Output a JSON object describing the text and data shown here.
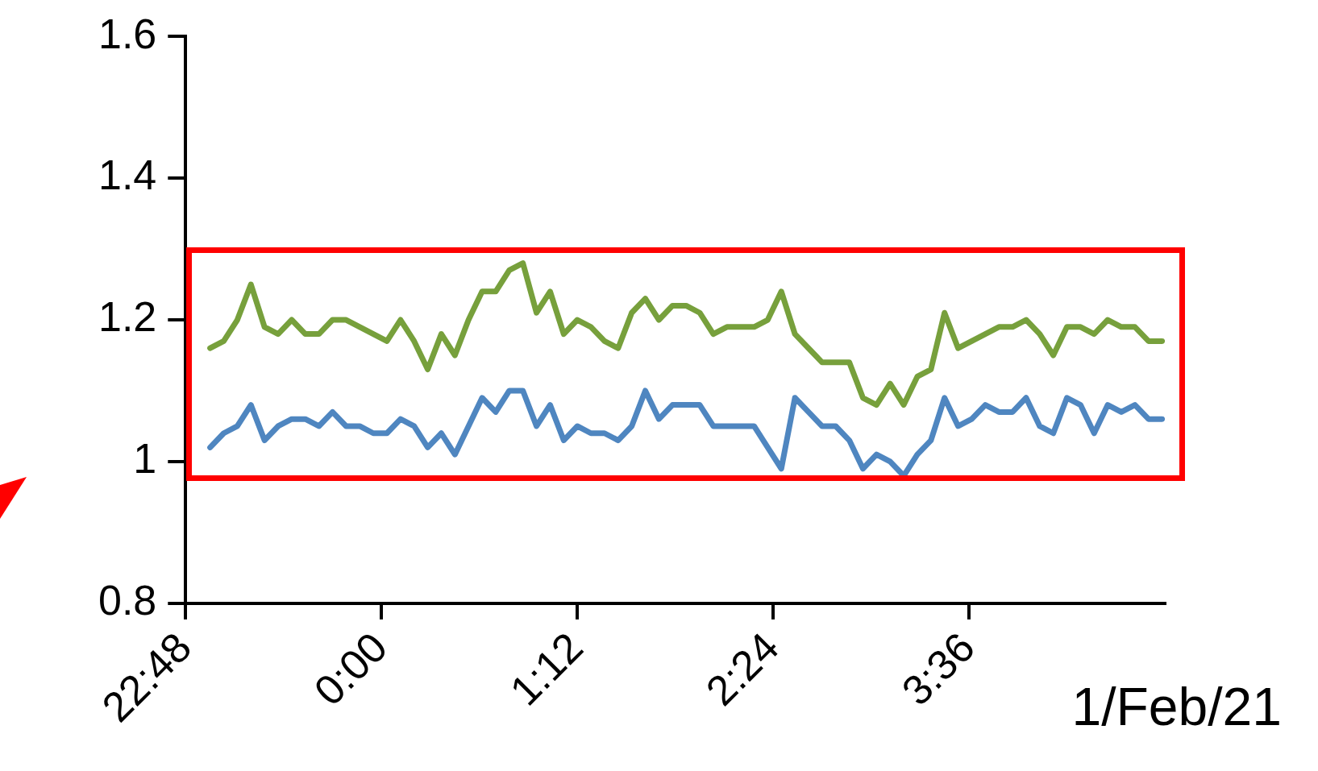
{
  "chart_data": {
    "type": "line",
    "xlabel": "1/Feb/21",
    "x": [
      "--01-31T22:57",
      "--01-31T23:02",
      "--01-31T23:07",
      "--01-31T23:12",
      "--01-31T23:17",
      "--01-31T23:22",
      "--01-31T23:27",
      "--01-31T23:32",
      "--01-31T23:37",
      "--01-31T23:42",
      "--01-31T23:47",
      "--01-31T23:52",
      "--01-31T23:57",
      "--02-01T00:02",
      "--02-01T00:07",
      "--02-01T00:12",
      "--02-01T00:17",
      "--02-01T00:22",
      "--02-01T00:27",
      "--02-01T00:32",
      "--02-01T00:37",
      "--02-01T00:42",
      "--02-01T00:47",
      "--02-01T00:52",
      "--02-01T00:57",
      "--02-01T01:02",
      "--02-01T01:07",
      "--02-01T01:12",
      "--02-01T01:17",
      "--02-01T01:22",
      "--02-01T01:27",
      "--02-01T01:32",
      "--02-01T01:37",
      "--02-01T01:42",
      "--02-01T01:47",
      "--02-01T01:52",
      "--02-01T01:57",
      "--02-01T02:02",
      "--02-01T02:07",
      "--02-01T02:12",
      "--02-01T02:17",
      "--02-01T02:22",
      "--02-01T02:27",
      "--02-01T02:32",
      "--02-01T02:37",
      "--02-01T02:42",
      "--02-01T02:47",
      "--02-01T02:52",
      "--02-01T02:57",
      "--02-01T03:02",
      "--02-01T03:07",
      "--02-01T03:12",
      "--02-01T03:17",
      "--02-01T03:22",
      "--02-01T03:27",
      "--02-01T03:32",
      "--02-01T03:37",
      "--02-01T03:42",
      "--02-01T03:47",
      "--02-01T03:52",
      "--02-01T03:57",
      "--02-01T04:02",
      "--02-01T04:07",
      "--02-01T04:12",
      "--02-01T04:17",
      "--02-01T04:22",
      "--02-01T04:27",
      "--02-01T04:32",
      "--02-01T04:37",
      "--02-01T04:42",
      "--02-01T04:47"
    ],
    "series": [
      {
        "color": "#77a03c",
        "values": [
          1.16,
          1.17,
          1.2,
          1.25,
          1.19,
          1.18,
          1.2,
          1.18,
          1.18,
          1.2,
          1.2,
          1.19,
          1.18,
          1.17,
          1.2,
          1.17,
          1.13,
          1.18,
          1.15,
          1.2,
          1.24,
          1.24,
          1.27,
          1.28,
          1.21,
          1.24,
          1.18,
          1.2,
          1.19,
          1.17,
          1.16,
          1.21,
          1.23,
          1.2,
          1.22,
          1.22,
          1.21,
          1.18,
          1.19,
          1.19,
          1.19,
          1.2,
          1.24,
          1.18,
          1.16,
          1.14,
          1.14,
          1.14,
          1.09,
          1.08,
          1.11,
          1.08,
          1.12,
          1.13,
          1.21,
          1.16,
          1.17,
          1.18,
          1.19,
          1.19,
          1.2,
          1.18,
          1.15,
          1.19,
          1.19,
          1.18,
          1.2,
          1.19,
          1.19,
          1.17,
          1.17
        ]
      },
      {
        "color": "#4f86c0",
        "values": [
          1.02,
          1.04,
          1.05,
          1.08,
          1.03,
          1.05,
          1.06,
          1.06,
          1.05,
          1.07,
          1.05,
          1.05,
          1.04,
          1.04,
          1.06,
          1.05,
          1.02,
          1.04,
          1.01,
          1.05,
          1.09,
          1.07,
          1.1,
          1.1,
          1.05,
          1.08,
          1.03,
          1.05,
          1.04,
          1.04,
          1.03,
          1.05,
          1.1,
          1.06,
          1.08,
          1.08,
          1.08,
          1.05,
          1.05,
          1.05,
          1.05,
          1.02,
          0.99,
          1.09,
          1.07,
          1.05,
          1.05,
          1.03,
          0.99,
          1.01,
          1.0,
          0.98,
          1.01,
          1.03,
          1.09,
          1.05,
          1.06,
          1.08,
          1.07,
          1.07,
          1.09,
          1.05,
          1.04,
          1.09,
          1.08,
          1.04,
          1.08,
          1.07,
          1.08,
          1.06,
          1.06
        ]
      }
    ],
    "xlim": [
      "--01-31T22:48",
      "--02-01T04:48"
    ],
    "xticks": [
      {
        "value": "--01-31T22:48",
        "label": "22:48"
      },
      {
        "value": "--02-01T00:00",
        "label": "0:00"
      },
      {
        "value": "--02-01T01:12",
        "label": "1:12"
      },
      {
        "value": "--02-01T02:24",
        "label": "2:24"
      },
      {
        "value": "--02-01T03:36",
        "label": "3:36"
      }
    ],
    "ylim": [
      0.8,
      1.6
    ],
    "yticks": [
      0.8,
      1,
      1.2,
      1.4,
      1.6
    ],
    "grid": false,
    "legend": false,
    "marker": "none",
    "line_style": "solid"
  }
}
